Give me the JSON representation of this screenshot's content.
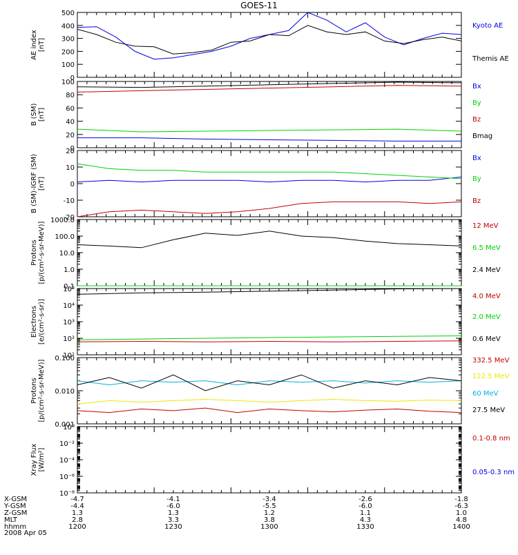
{
  "title": "GOES-11",
  "date": "2008 Apr 05",
  "colors": {
    "black": "#000000",
    "blue": "#0000e0",
    "red": "#c00000",
    "green": "#00d000",
    "cyan": "#00b0e0",
    "yellow": "#e8e800"
  },
  "footer": {
    "rows": [
      {
        "label": "X-GSM",
        "values": [
          "-4.7",
          "-4.1",
          "-3.4",
          "-2.6",
          "-1.8"
        ]
      },
      {
        "label": "Y-GSM",
        "values": [
          "-4.4",
          "-6.0",
          "-5.5",
          "-6.0",
          "-6.3"
        ]
      },
      {
        "label": "Z-GSM",
        "values": [
          "1.3",
          "1.3",
          "1.2",
          "1.1",
          "1.0"
        ]
      },
      {
        "label": "MLT",
        "values": [
          "2.8",
          "3.3",
          "3.8",
          "4.3",
          "4.8"
        ]
      },
      {
        "label": "hhmm",
        "values": [
          "1200",
          "1230",
          "1300",
          "1330",
          "1400"
        ]
      }
    ]
  },
  "chart_data": [
    {
      "type": "line",
      "ylabel": "AE index\n[nT]",
      "yscale": "linear",
      "ylim": [
        0,
        500
      ],
      "yticks": [
        "0",
        "100",
        "200",
        "300",
        "400",
        "500"
      ],
      "x": [
        0,
        6,
        12,
        18,
        24,
        30,
        36,
        42,
        48,
        54,
        60,
        66,
        72,
        78,
        84,
        90,
        96,
        102,
        108,
        114,
        120
      ],
      "series": [
        {
          "name": "Kyoto AE",
          "color": "#0000e0",
          "values": [
            385,
            390,
            310,
            200,
            140,
            150,
            175,
            200,
            240,
            300,
            330,
            360,
            500,
            440,
            350,
            420,
            310,
            250,
            300,
            340,
            330
          ]
        },
        {
          "name": "Themis AE",
          "color": "#000000",
          "values": [
            370,
            330,
            270,
            240,
            235,
            180,
            190,
            210,
            270,
            280,
            330,
            320,
            400,
            350,
            330,
            350,
            280,
            260,
            290,
            310,
            280
          ]
        }
      ]
    },
    {
      "type": "line",
      "ylabel": "B (SM)\n[nT]",
      "yscale": "linear",
      "ylim": [
        0,
        100
      ],
      "yticks": [
        "0",
        "20",
        "40",
        "60",
        "80",
        "100"
      ],
      "x": [
        0,
        20,
        40,
        60,
        80,
        100,
        120
      ],
      "series": [
        {
          "name": "Bx",
          "color": "#0000e0",
          "values": [
            15,
            15,
            13,
            12,
            11,
            10,
            10
          ]
        },
        {
          "name": "By",
          "color": "#00d000",
          "values": [
            28,
            24,
            25,
            26,
            27,
            28,
            25
          ]
        },
        {
          "name": "Bz",
          "color": "#c00000",
          "values": [
            84,
            86,
            88,
            90,
            92,
            94,
            93
          ]
        },
        {
          "name": "Bmag",
          "color": "#000000",
          "values": [
            92,
            91,
            93,
            95,
            97,
            99,
            98
          ]
        }
      ]
    },
    {
      "type": "line",
      "ylabel": "B (SM)-IGRF (SM)\n[nT]",
      "yscale": "linear",
      "ylim": [
        -20,
        20
      ],
      "yticks": [
        "-20",
        "-10",
        "0",
        "10",
        "20"
      ],
      "x": [
        0,
        10,
        20,
        30,
        40,
        50,
        60,
        70,
        80,
        90,
        100,
        110,
        120
      ],
      "series": [
        {
          "name": "Bx",
          "color": "#0000e0",
          "values": [
            1,
            2,
            1,
            2,
            2,
            2,
            1,
            2,
            2,
            1,
            2,
            2,
            4
          ]
        },
        {
          "name": "By",
          "color": "#00d000",
          "values": [
            12,
            9,
            8,
            8,
            7,
            7,
            7,
            7,
            7,
            6,
            5,
            4,
            3
          ]
        },
        {
          "name": "Bz",
          "color": "#c00000",
          "values": [
            -20,
            -17,
            -16,
            -17,
            -18,
            -17,
            -15,
            -12,
            -11,
            -11,
            -11,
            -12,
            -11
          ]
        }
      ]
    },
    {
      "type": "line",
      "ylabel": "Protons\n[p/(cm²-s-sr-MeV)]",
      "yscale": "log",
      "ylim": [
        0.1,
        1000
      ],
      "yticks": [
        "0.1",
        "1.0",
        "10.0",
        "100.0",
        "1000.0"
      ],
      "x": [
        0,
        10,
        20,
        30,
        40,
        50,
        60,
        70,
        80,
        90,
        100,
        110,
        120
      ],
      "series": [
        {
          "name": "12 MeV",
          "color": "#c00000",
          "values": [
            0.1,
            0.1,
            0.1,
            0.1,
            0.1,
            0.1,
            0.1,
            0.1,
            0.1,
            0.1,
            0.1,
            0.1,
            0.1
          ]
        },
        {
          "name": "6.5 MeV",
          "color": "#00d000",
          "values": [
            0.1,
            0.1,
            0.1,
            0.1,
            0.1,
            0.1,
            0.1,
            0.1,
            0.1,
            0.1,
            0.1,
            0.1,
            0.1
          ]
        },
        {
          "name": "2.4 MeV",
          "color": "#000000",
          "values": [
            30,
            25,
            20,
            60,
            150,
            110,
            200,
            100,
            80,
            50,
            35,
            30,
            25
          ]
        }
      ]
    },
    {
      "type": "line",
      "ylabel": "Electrons\n[e/(cm²-s-sr)]",
      "yscale": "log",
      "ylim": [
        10,
        100000
      ],
      "yticks": [
        "10¹",
        "10²",
        "10³",
        "10⁴",
        "10⁵"
      ],
      "x": [
        0,
        20,
        40,
        60,
        80,
        100,
        120
      ],
      "series": [
        {
          "name": "4.0 MeV",
          "color": "#c00000",
          "values": [
            60,
            65,
            60,
            65,
            60,
            65,
            70
          ]
        },
        {
          "name": "2.0 MeV",
          "color": "#00d000",
          "values": [
            80,
            90,
            100,
            110,
            120,
            130,
            140
          ]
        },
        {
          "name": "0.6 MeV",
          "color": "#000000",
          "values": [
            45000,
            55000,
            60000,
            70000,
            80000,
            95000,
            100000
          ]
        }
      ]
    },
    {
      "type": "line",
      "ylabel": "Protons\n[p/(cm²-s-sr-MeV)]",
      "yscale": "log",
      "ylim": [
        0.001,
        0.1
      ],
      "yticks": [
        "0.001",
        "0.010",
        "0.100"
      ],
      "x": [
        0,
        10,
        20,
        30,
        40,
        50,
        60,
        70,
        80,
        90,
        100,
        110,
        120
      ],
      "series": [
        {
          "name": "332.5 MeV",
          "color": "#c00000",
          "values": [
            0.0025,
            0.0022,
            0.0028,
            0.0025,
            0.003,
            0.0022,
            0.0028,
            0.0025,
            0.0023,
            0.0026,
            0.0028,
            0.0024,
            0.0022
          ]
        },
        {
          "name": "122.5 MeV",
          "color": "#e8e800",
          "values": [
            0.004,
            0.005,
            0.0045,
            0.005,
            0.0055,
            0.005,
            0.0045,
            0.005,
            0.0055,
            0.005,
            0.0048,
            0.0052,
            0.005
          ]
        },
        {
          "name": "60 MeV",
          "color": "#00b0e0",
          "values": [
            0.02,
            0.015,
            0.02,
            0.018,
            0.02,
            0.015,
            0.02,
            0.018,
            0.02,
            0.017,
            0.02,
            0.018,
            0.02
          ]
        },
        {
          "name": "27.5 MeV",
          "color": "#000000",
          "values": [
            0.015,
            0.025,
            0.012,
            0.03,
            0.01,
            0.02,
            0.015,
            0.03,
            0.012,
            0.02,
            0.015,
            0.025,
            0.02
          ]
        }
      ]
    },
    {
      "type": "line",
      "ylabel": "Xray Flux\n[W/m²]",
      "yscale": "log",
      "ylim": [
        1e-09,
        1
      ],
      "yticks": [
        "10⁻⁸",
        "10⁻⁶",
        "10⁻⁴",
        "10⁻²",
        "10⁰"
      ],
      "x": [],
      "series": [
        {
          "name": "0.1-0.8 nm",
          "color": "#c00000",
          "values": []
        },
        {
          "name": "0.05-0.3 nm",
          "color": "#0000e0",
          "values": []
        }
      ]
    }
  ]
}
